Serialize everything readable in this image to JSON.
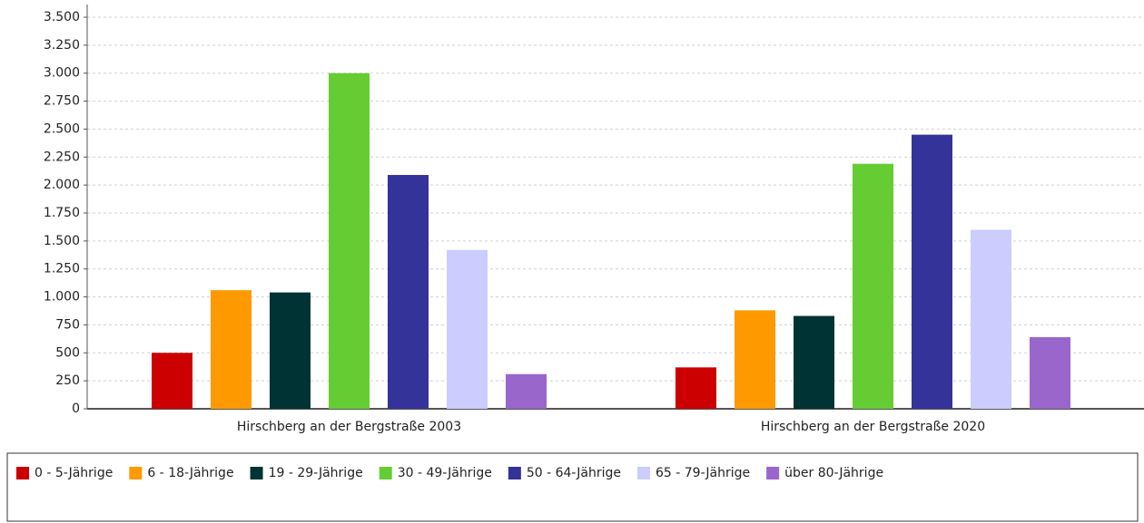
{
  "chart_data": {
    "type": "bar",
    "categories": [
      "Hirschberg an der Bergstraße 2003",
      "Hirschberg an der Bergstraße 2020"
    ],
    "series": [
      {
        "name": "0 - 5-Jährige",
        "color": "#cc0000",
        "values": [
          500,
          370
        ]
      },
      {
        "name": "6 - 18-Jährige",
        "color": "#ff9900",
        "values": [
          1060,
          880
        ]
      },
      {
        "name": "19 - 29-Jährige",
        "color": "#003333",
        "values": [
          1040,
          830
        ]
      },
      {
        "name": "30 - 49-Jährige",
        "color": "#66cc33",
        "values": [
          3000,
          2190
        ]
      },
      {
        "name": "50 - 64-Jährige",
        "color": "#333399",
        "values": [
          2090,
          2450
        ]
      },
      {
        "name": "65 - 79-Jährige",
        "color": "#ccccff",
        "values": [
          1420,
          1600
        ]
      },
      {
        "name": "über 80-Jährige",
        "color": "#9966cc",
        "values": [
          310,
          640
        ]
      }
    ],
    "ylim": [
      0,
      3500
    ],
    "yticks": [
      0,
      250,
      500,
      750,
      {
        "value": 1000,
        "label": "1.000"
      },
      {
        "value": 1250,
        "label": "1.250"
      },
      {
        "value": 1500,
        "label": "1.500"
      },
      {
        "value": 1750,
        "label": "1.750"
      },
      {
        "value": 2000,
        "label": "2.000"
      },
      {
        "value": 2250,
        "label": "2.250"
      },
      {
        "value": 2500,
        "label": "2.500"
      },
      {
        "value": 2750,
        "label": "2.750"
      },
      {
        "value": 3000,
        "label": "3.000"
      },
      {
        "value": 3250,
        "label": "3.250"
      },
      {
        "value": 3500,
        "label": "3.500"
      }
    ],
    "grid": true,
    "legend": "bottom"
  }
}
